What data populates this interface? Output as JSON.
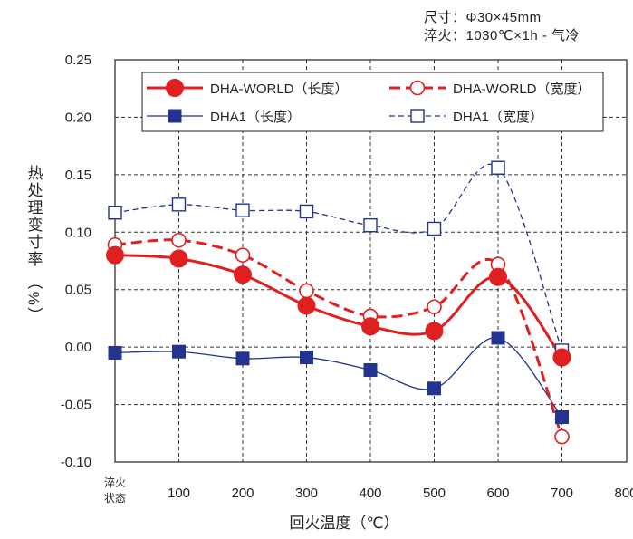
{
  "annotation": {
    "line1": "尺寸：Φ30×45mm",
    "line2": "淬火：1030℃×1h - 气冷"
  },
  "chart_data": {
    "type": "line",
    "ylabel": "热处理变寸率 （%）",
    "xlabel": "回火温度（℃）",
    "x_tick_labels": [
      [
        "淬火",
        "状态"
      ],
      "100",
      "200",
      "300",
      "400",
      "500",
      "600",
      "700",
      "800"
    ],
    "x": [
      0,
      100,
      200,
      300,
      400,
      500,
      600,
      700
    ],
    "ylim": [
      -0.1,
      0.25
    ],
    "yticks": [
      "0.25",
      "0.20",
      "0.15",
      "0.10",
      "0.05",
      "0.00",
      "-0.05",
      "-0.10"
    ],
    "ytick_values": [
      0.25,
      0.2,
      0.15,
      0.1,
      0.05,
      0.0,
      -0.05,
      -0.1
    ],
    "grid": "dashed",
    "legend_position": "top",
    "series": [
      {
        "name": "DHA-WORLD（长度）",
        "color": "#e02020",
        "marker": "filled-circle",
        "line": "solid",
        "values": [
          0.08,
          0.077,
          0.063,
          0.036,
          0.018,
          0.014,
          0.061,
          -0.009
        ]
      },
      {
        "name": "DHA-WORLD（宽度）",
        "color": "#e02020",
        "marker": "open-circle",
        "line": "dashed",
        "values": [
          0.089,
          0.093,
          0.08,
          0.049,
          0.027,
          0.035,
          0.072,
          -0.078
        ]
      },
      {
        "name": "DHA1（长度）",
        "color": "#23338f",
        "marker": "filled-square",
        "line": "solid",
        "values": [
          -0.005,
          -0.004,
          -0.01,
          -0.009,
          -0.02,
          -0.036,
          0.008,
          -0.061
        ]
      },
      {
        "name": "DHA1（宽度）",
        "color": "#23338f",
        "marker": "open-square",
        "line": "dashed",
        "values": [
          0.117,
          0.124,
          0.119,
          0.118,
          0.106,
          0.103,
          0.156,
          -0.003
        ]
      }
    ]
  }
}
